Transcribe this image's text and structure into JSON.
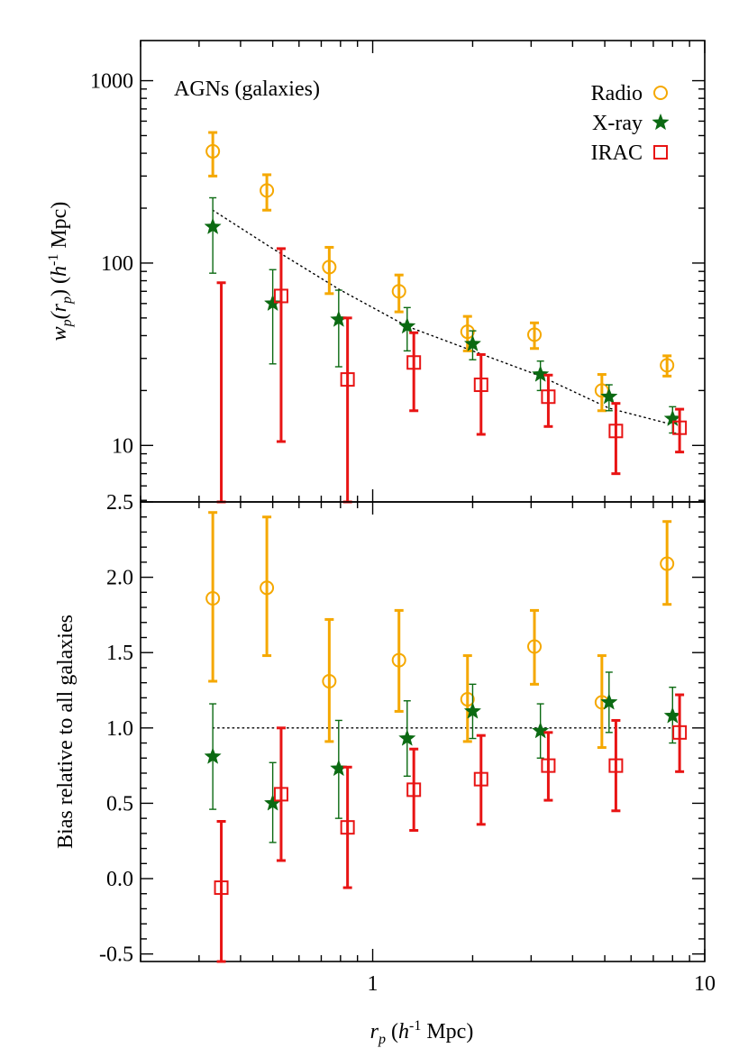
{
  "chart_data": [
    {
      "type": "scatter",
      "panel": "top",
      "annotation": "AGNs (galaxies)",
      "x_scale": "log",
      "y_scale": "log",
      "xlim": [
        0.2,
        10
      ],
      "ylim": [
        4.9,
        1660
      ],
      "y_ticks": [
        {
          "value": 10,
          "label": "10"
        },
        {
          "value": 100,
          "label": "100"
        },
        {
          "value": 1000,
          "label": "1000"
        }
      ],
      "ylabel_parts": [
        "w",
        "p",
        "(r",
        "p",
        ") (",
        "h",
        "-1",
        " Mpc)"
      ],
      "series": [
        {
          "name": "Radio",
          "marker": "circle",
          "color": "#F5A800",
          "points": [
            {
              "x": 0.33,
              "y": 410,
              "lo": 300,
              "hi": 520
            },
            {
              "x": 0.48,
              "y": 250,
              "lo": 195,
              "hi": 305
            },
            {
              "x": 0.74,
              "y": 95,
              "lo": 68,
              "hi": 122
            },
            {
              "x": 1.2,
              "y": 70,
              "lo": 54,
              "hi": 86
            },
            {
              "x": 1.93,
              "y": 42,
              "lo": 33,
              "hi": 51
            },
            {
              "x": 3.07,
              "y": 40.5,
              "lo": 34,
              "hi": 47
            },
            {
              "x": 4.9,
              "y": 20,
              "lo": 15.5,
              "hi": 24.5
            },
            {
              "x": 7.7,
              "y": 27.5,
              "lo": 24,
              "hi": 31
            }
          ]
        },
        {
          "name": "X-ray",
          "marker": "star",
          "color": "#0B6A12",
          "points": [
            {
              "x": 0.33,
              "y": 158,
              "lo": 88,
              "hi": 228
            },
            {
              "x": 0.5,
              "y": 60,
              "lo": 28,
              "hi": 92
            },
            {
              "x": 0.79,
              "y": 49,
              "lo": 27,
              "hi": 71
            },
            {
              "x": 1.27,
              "y": 45,
              "lo": 33,
              "hi": 57
            },
            {
              "x": 2.0,
              "y": 36,
              "lo": 29.5,
              "hi": 42.5
            },
            {
              "x": 3.2,
              "y": 24.5,
              "lo": 20,
              "hi": 29
            },
            {
              "x": 5.15,
              "y": 18.5,
              "lo": 15.5,
              "hi": 21.5
            },
            {
              "x": 8.0,
              "y": 14,
              "lo": 11.7,
              "hi": 16.3
            }
          ]
        },
        {
          "name": "IRAC",
          "marker": "square",
          "color": "#E81414",
          "points": [
            {
              "x": 0.35,
              "y": null,
              "lo": 4.9,
              "hi": 78
            },
            {
              "x": 0.53,
              "y": 66,
              "lo": 10.5,
              "hi": 120
            },
            {
              "x": 0.84,
              "y": 23,
              "lo": 4.9,
              "hi": 50
            },
            {
              "x": 1.33,
              "y": 28.5,
              "lo": 15.5,
              "hi": 41.5
            },
            {
              "x": 2.12,
              "y": 21.5,
              "lo": 11.5,
              "hi": 31.5
            },
            {
              "x": 3.38,
              "y": 18.5,
              "lo": 12.7,
              "hi": 24.3
            },
            {
              "x": 5.4,
              "y": 12,
              "lo": 7,
              "hi": 17
            },
            {
              "x": 8.4,
              "y": 12.5,
              "lo": 9.2,
              "hi": 15.8
            }
          ]
        }
      ],
      "reference_line": {
        "style": "dotted",
        "points": [
          {
            "x": 0.33,
            "y": 195
          },
          {
            "x": 0.5,
            "y": 120
          },
          {
            "x": 0.79,
            "y": 72
          },
          {
            "x": 1.27,
            "y": 45
          },
          {
            "x": 2.0,
            "y": 33
          },
          {
            "x": 3.2,
            "y": 24
          },
          {
            "x": 5.15,
            "y": 16
          },
          {
            "x": 8.0,
            "y": 13
          }
        ]
      },
      "legend": {
        "placement": "top-right",
        "entries": [
          "Radio",
          "X-ray",
          "IRAC"
        ]
      }
    },
    {
      "type": "scatter",
      "panel": "bottom",
      "x_scale": "log",
      "y_scale": "linear",
      "xlim": [
        0.2,
        10
      ],
      "ylim": [
        -0.55,
        2.5
      ],
      "y_ticks": [
        {
          "value": -0.5,
          "label": "-0.5"
        },
        {
          "value": 0.0,
          "label": "0.0"
        },
        {
          "value": 0.5,
          "label": "0.5"
        },
        {
          "value": 1.0,
          "label": "1.0"
        },
        {
          "value": 1.5,
          "label": "1.5"
        },
        {
          "value": 2.0,
          "label": "2.0"
        },
        {
          "value": 2.5,
          "label": "2.5"
        }
      ],
      "x_ticks": [
        {
          "value": 1,
          "label": "1"
        },
        {
          "value": 10,
          "label": "10"
        }
      ],
      "ylabel": "Bias relative to all galaxies",
      "xlabel_parts": [
        "r",
        "p",
        " (",
        "h",
        "-1",
        " Mpc)"
      ],
      "series": [
        {
          "name": "Radio",
          "marker": "circle",
          "color": "#F5A800",
          "points": [
            {
              "x": 0.33,
              "y": 1.86,
              "lo": 1.31,
              "hi": 2.43
            },
            {
              "x": 0.48,
              "y": 1.93,
              "lo": 1.48,
              "hi": 2.4
            },
            {
              "x": 0.74,
              "y": 1.31,
              "lo": 0.91,
              "hi": 1.72
            },
            {
              "x": 1.2,
              "y": 1.45,
              "lo": 1.11,
              "hi": 1.78
            },
            {
              "x": 1.93,
              "y": 1.19,
              "lo": 0.91,
              "hi": 1.48
            },
            {
              "x": 3.07,
              "y": 1.54,
              "lo": 1.29,
              "hi": 1.78
            },
            {
              "x": 4.9,
              "y": 1.17,
              "lo": 0.87,
              "hi": 1.48
            },
            {
              "x": 7.7,
              "y": 2.09,
              "lo": 1.82,
              "hi": 2.37
            }
          ]
        },
        {
          "name": "X-ray",
          "marker": "star",
          "color": "#0B6A12",
          "points": [
            {
              "x": 0.33,
              "y": 0.81,
              "lo": 0.46,
              "hi": 1.16
            },
            {
              "x": 0.5,
              "y": 0.5,
              "lo": 0.24,
              "hi": 0.77
            },
            {
              "x": 0.79,
              "y": 0.73,
              "lo": 0.4,
              "hi": 1.05
            },
            {
              "x": 1.27,
              "y": 0.93,
              "lo": 0.68,
              "hi": 1.18
            },
            {
              "x": 2.0,
              "y": 1.11,
              "lo": 0.93,
              "hi": 1.29
            },
            {
              "x": 3.2,
              "y": 0.98,
              "lo": 0.8,
              "hi": 1.16
            },
            {
              "x": 5.15,
              "y": 1.17,
              "lo": 0.97,
              "hi": 1.37
            },
            {
              "x": 8.0,
              "y": 1.08,
              "lo": 0.9,
              "hi": 1.27
            }
          ]
        },
        {
          "name": "IRAC",
          "marker": "square",
          "color": "#E81414",
          "points": [
            {
              "x": 0.35,
              "y": -0.06,
              "lo": -0.55,
              "hi": 0.38
            },
            {
              "x": 0.53,
              "y": 0.56,
              "lo": 0.12,
              "hi": 1.0
            },
            {
              "x": 0.84,
              "y": 0.34,
              "lo": -0.06,
              "hi": 0.74
            },
            {
              "x": 1.33,
              "y": 0.59,
              "lo": 0.32,
              "hi": 0.86
            },
            {
              "x": 2.12,
              "y": 0.66,
              "lo": 0.36,
              "hi": 0.95
            },
            {
              "x": 3.38,
              "y": 0.75,
              "lo": 0.52,
              "hi": 0.97
            },
            {
              "x": 5.4,
              "y": 0.75,
              "lo": 0.45,
              "hi": 1.05
            },
            {
              "x": 8.4,
              "y": 0.97,
              "lo": 0.71,
              "hi": 1.22
            }
          ]
        }
      ],
      "reference_line": {
        "style": "dotted",
        "points": [
          {
            "x": 0.33,
            "y": 1.0
          },
          {
            "x": 8.0,
            "y": 1.0
          }
        ]
      }
    }
  ]
}
